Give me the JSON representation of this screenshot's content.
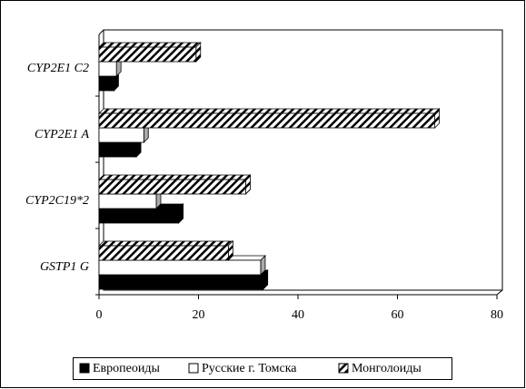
{
  "chart_data": {
    "type": "bar",
    "orientation": "horizontal",
    "categories": [
      "GSTP1 G",
      "CYP2C19*2",
      "CYP2E1 A",
      "CYP2E1 C2"
    ],
    "series": [
      {
        "name": "Европеоиды",
        "color": "#000000",
        "values": [
          33,
          16,
          7.5,
          3
        ]
      },
      {
        "name": "Русские г. Томска",
        "color": "#ffffff",
        "values": [
          32.5,
          11.5,
          9,
          3.5
        ]
      },
      {
        "name": "Монголоиды",
        "color": "#ffffff",
        "pattern": "hatch",
        "values": [
          26,
          29.5,
          67.5,
          19.5
        ]
      }
    ],
    "xlim": [
      0,
      80
    ],
    "xticks": [
      0,
      20,
      40,
      60,
      80
    ],
    "legend": "bottom"
  }
}
